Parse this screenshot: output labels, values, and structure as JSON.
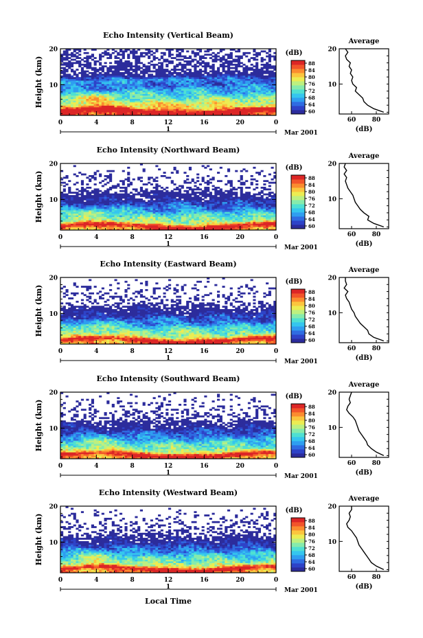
{
  "footer": {
    "xlabel": "Local Time"
  },
  "colorbar": {
    "unit": "(dB)",
    "ticks": [
      "88",
      "84",
      "80",
      "76",
      "72",
      "68",
      "64",
      "60"
    ],
    "min": 60,
    "max": 88,
    "colors": [
      "#2c2c9c",
      "#2e43c8",
      "#2f6ce2",
      "#2f9ef0",
      "#35c6ee",
      "#4fe0d2",
      "#86ebac",
      "#bdf080",
      "#ecec52",
      "#fbc53e",
      "#fb8c2f",
      "#f2542a",
      "#dc2626"
    ]
  },
  "chart_data": [
    {
      "type": "heatmap",
      "title": "Echo Intensity (Vertical Beam)",
      "ylabel": "Height (km)",
      "xlim": [
        0,
        24
      ],
      "ylim": [
        1.5,
        20
      ],
      "xticks": [
        "0",
        "4",
        "8",
        "12",
        "16",
        "20",
        "0"
      ],
      "yticks": [
        "10",
        "20"
      ],
      "date_marker": "1",
      "date_label": "Mar 2001",
      "profile": {
        "title": "Average",
        "xlabel": "(dB)",
        "xlim": [
          50,
          90
        ],
        "xticks": [
          "60",
          "80"
        ],
        "yticks": [
          "10",
          "20"
        ],
        "height": [
          2,
          3,
          4,
          5,
          6,
          7,
          8,
          9,
          10,
          11,
          12,
          13,
          14,
          15,
          16,
          17,
          18,
          19,
          20
        ],
        "db": [
          86,
          78,
          73,
          70,
          69,
          66,
          63,
          64,
          61,
          60,
          61,
          59,
          60,
          58,
          59,
          56,
          55,
          57,
          55
        ]
      }
    },
    {
      "type": "heatmap",
      "title": "Echo Intensity (Northward Beam)",
      "ylabel": "Height (km)",
      "xlim": [
        0,
        24
      ],
      "ylim": [
        1.5,
        20
      ],
      "xticks": [
        "0",
        "4",
        "8",
        "12",
        "16",
        "20",
        "0"
      ],
      "yticks": [
        "10",
        "20"
      ],
      "date_marker": "1",
      "date_label": "Mar 2001",
      "profile": {
        "title": "Average",
        "xlabel": "(dB)",
        "xlim": [
          50,
          90
        ],
        "xticks": [
          "60",
          "80"
        ],
        "yticks": [
          "10",
          "20"
        ],
        "height": [
          2,
          3,
          4,
          5,
          6,
          7,
          8,
          9,
          10,
          11,
          12,
          13,
          14,
          15,
          16,
          17,
          18,
          19,
          20
        ],
        "db": [
          86,
          78,
          73,
          74,
          70,
          67,
          65,
          63,
          62,
          61,
          59,
          57,
          56,
          55,
          56,
          54,
          56,
          54,
          55
        ]
      }
    },
    {
      "type": "heatmap",
      "title": "Echo Intensity (Eastward Beam)",
      "ylabel": "Height (km)",
      "xlim": [
        0,
        24
      ],
      "ylim": [
        1.5,
        20
      ],
      "xticks": [
        "0",
        "4",
        "8",
        "12",
        "16",
        "20",
        "0"
      ],
      "yticks": [
        "10",
        "20"
      ],
      "date_marker": "1",
      "date_label": "Mar 2001",
      "profile": {
        "title": "Average",
        "xlabel": "(dB)",
        "xlim": [
          50,
          90
        ],
        "xticks": [
          "60",
          "80"
        ],
        "yticks": [
          "10",
          "20"
        ],
        "height": [
          2,
          3,
          4,
          5,
          6,
          7,
          8,
          9,
          10,
          11,
          12,
          13,
          14,
          15,
          16,
          17,
          18,
          19,
          20
        ],
        "db": [
          86,
          78,
          74,
          73,
          70,
          67,
          65,
          63,
          62,
          60,
          59,
          58,
          56,
          55,
          57,
          54,
          56,
          55,
          55
        ]
      }
    },
    {
      "type": "heatmap",
      "title": "Echo Intensity (Southward Beam)",
      "ylabel": "Height (km)",
      "xlim": [
        0,
        24
      ],
      "ylim": [
        1.5,
        20
      ],
      "xticks": [
        "0",
        "4",
        "8",
        "12",
        "16",
        "20",
        "0"
      ],
      "yticks": [
        "10",
        "20"
      ],
      "date_marker": "1",
      "date_label": "Mar 2001",
      "profile": {
        "title": "Average",
        "xlabel": "(dB)",
        "xlim": [
          50,
          90
        ],
        "xticks": [
          "60",
          "80"
        ],
        "yticks": [
          "10",
          "20"
        ],
        "height": [
          2,
          3,
          4,
          5,
          6,
          7,
          8,
          9,
          10,
          11,
          12,
          13,
          14,
          15,
          16,
          17,
          18,
          19,
          20
        ],
        "db": [
          86,
          80,
          76,
          73,
          72,
          70,
          68,
          66,
          65,
          64,
          63,
          61,
          58,
          56,
          57,
          59,
          58,
          59,
          60
        ]
      }
    },
    {
      "type": "heatmap",
      "title": "Echo Intensity (Westward Beam)",
      "ylabel": "Height (km)",
      "xlim": [
        0,
        24
      ],
      "ylim": [
        1.5,
        20
      ],
      "xticks": [
        "0",
        "4",
        "8",
        "12",
        "16",
        "20",
        "0"
      ],
      "yticks": [
        "10",
        "20"
      ],
      "date_marker": "1",
      "date_label": "Mar 2001",
      "profile": {
        "title": "Average",
        "xlabel": "(dB)",
        "xlim": [
          50,
          90
        ],
        "xticks": [
          "60",
          "80"
        ],
        "yticks": [
          "10",
          "20"
        ],
        "height": [
          2,
          3,
          4,
          5,
          6,
          7,
          8,
          9,
          10,
          11,
          12,
          13,
          14,
          15,
          16,
          17,
          18,
          19,
          20
        ],
        "db": [
          86,
          80,
          76,
          74,
          72,
          70,
          68,
          66,
          65,
          64,
          62,
          60,
          57,
          56,
          58,
          59,
          58,
          60,
          60
        ]
      }
    }
  ]
}
